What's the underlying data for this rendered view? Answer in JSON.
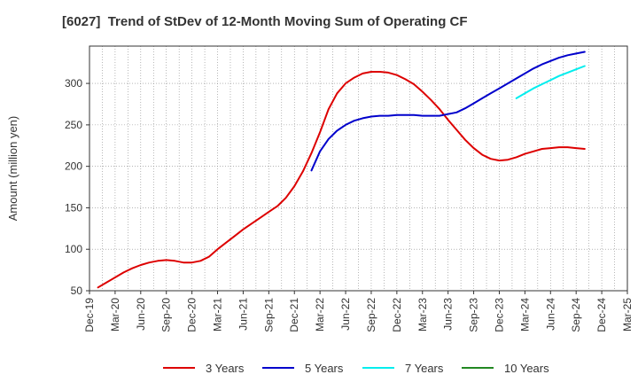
{
  "chart_data": {
    "type": "line",
    "title": "[6027]  Trend of StDev of 12-Month Moving Sum of Operating CF",
    "ylabel": "Amount (million yen)",
    "xlabel": "",
    "ylim": [
      50,
      345
    ],
    "yticks": [
      50,
      100,
      150,
      200,
      250,
      300
    ],
    "categories": [
      "Dec-19",
      "Mar-20",
      "Jun-20",
      "Sep-20",
      "Dec-20",
      "Mar-21",
      "Jun-21",
      "Sep-21",
      "Dec-21",
      "Mar-22",
      "Jun-22",
      "Sep-22",
      "Dec-22",
      "Mar-23",
      "Jun-23",
      "Sep-23",
      "Dec-23",
      "Mar-24",
      "Jun-24",
      "Sep-24",
      "Dec-24",
      "Mar-25"
    ],
    "grid": true,
    "legend_position": "bottom",
    "series": [
      {
        "name": "3 Years",
        "color": "#dd0000",
        "points": [
          [
            "Jan-20",
            54
          ],
          [
            "Feb-20",
            60
          ],
          [
            "Mar-20",
            66
          ],
          [
            "Apr-20",
            72
          ],
          [
            "May-20",
            77
          ],
          [
            "Jun-20",
            81
          ],
          [
            "Jul-20",
            84
          ],
          [
            "Aug-20",
            86
          ],
          [
            "Sep-20",
            87
          ],
          [
            "Oct-20",
            86
          ],
          [
            "Nov-20",
            84
          ],
          [
            "Dec-20",
            84
          ],
          [
            "Jan-21",
            86
          ],
          [
            "Feb-21",
            91
          ],
          [
            "Mar-21",
            100
          ],
          [
            "Apr-21",
            108
          ],
          [
            "May-21",
            116
          ],
          [
            "Jun-21",
            124
          ],
          [
            "Jul-21",
            131
          ],
          [
            "Aug-21",
            138
          ],
          [
            "Sep-21",
            145
          ],
          [
            "Oct-21",
            152
          ],
          [
            "Nov-21",
            162
          ],
          [
            "Dec-21",
            176
          ],
          [
            "Jan-22",
            194
          ],
          [
            "Feb-22",
            216
          ],
          [
            "Mar-22",
            241
          ],
          [
            "Apr-22",
            269
          ],
          [
            "May-22",
            288
          ],
          [
            "Jun-22",
            300
          ],
          [
            "Jul-22",
            307
          ],
          [
            "Aug-22",
            312
          ],
          [
            "Sep-22",
            314
          ],
          [
            "Oct-22",
            314
          ],
          [
            "Nov-22",
            313
          ],
          [
            "Dec-22",
            310
          ],
          [
            "Jan-23",
            305
          ],
          [
            "Feb-23",
            299
          ],
          [
            "Mar-23",
            290
          ],
          [
            "Apr-23",
            280
          ],
          [
            "May-23",
            269
          ],
          [
            "Jun-23",
            256
          ],
          [
            "Jul-23",
            244
          ],
          [
            "Aug-23",
            232
          ],
          [
            "Sep-23",
            222
          ],
          [
            "Oct-23",
            214
          ],
          [
            "Nov-23",
            209
          ],
          [
            "Dec-23",
            207
          ],
          [
            "Jan-24",
            208
          ],
          [
            "Feb-24",
            211
          ],
          [
            "Mar-24",
            215
          ],
          [
            "Apr-24",
            218
          ],
          [
            "May-24",
            221
          ],
          [
            "Jun-24",
            222
          ],
          [
            "Jul-24",
            223
          ],
          [
            "Aug-24",
            223
          ],
          [
            "Sep-24",
            222
          ],
          [
            "Oct-24",
            221
          ]
        ]
      },
      {
        "name": "5 Years",
        "color": "#0000cc",
        "points": [
          [
            "Feb-22",
            195
          ],
          [
            "Mar-22",
            218
          ],
          [
            "Apr-22",
            233
          ],
          [
            "May-22",
            243
          ],
          [
            "Jun-22",
            250
          ],
          [
            "Jul-22",
            255
          ],
          [
            "Aug-22",
            258
          ],
          [
            "Sep-22",
            260
          ],
          [
            "Oct-22",
            261
          ],
          [
            "Nov-22",
            261
          ],
          [
            "Dec-22",
            262
          ],
          [
            "Jan-23",
            262
          ],
          [
            "Feb-23",
            262
          ],
          [
            "Mar-23",
            261
          ],
          [
            "Apr-23",
            261
          ],
          [
            "May-23",
            261
          ],
          [
            "Jun-23",
            263
          ],
          [
            "Jul-23",
            265
          ],
          [
            "Aug-23",
            270
          ],
          [
            "Sep-23",
            276
          ],
          [
            "Oct-23",
            282
          ],
          [
            "Nov-23",
            288
          ],
          [
            "Dec-23",
            294
          ],
          [
            "Jan-24",
            300
          ],
          [
            "Feb-24",
            306
          ],
          [
            "Mar-24",
            312
          ],
          [
            "Apr-24",
            318
          ],
          [
            "May-24",
            323
          ],
          [
            "Jun-24",
            327
          ],
          [
            "Jul-24",
            331
          ],
          [
            "Aug-24",
            334
          ],
          [
            "Sep-24",
            336
          ],
          [
            "Oct-24",
            338
          ]
        ]
      },
      {
        "name": "7 Years",
        "color": "#00eeee",
        "points": [
          [
            "Feb-24",
            282
          ],
          [
            "Mar-24",
            288
          ],
          [
            "Apr-24",
            294
          ],
          [
            "May-24",
            299
          ],
          [
            "Jun-24",
            304
          ],
          [
            "Jul-24",
            309
          ],
          [
            "Aug-24",
            313
          ],
          [
            "Sep-24",
            317
          ],
          [
            "Oct-24",
            321
          ]
        ]
      },
      {
        "name": "10 Years",
        "color": "#228822",
        "points": []
      }
    ]
  }
}
